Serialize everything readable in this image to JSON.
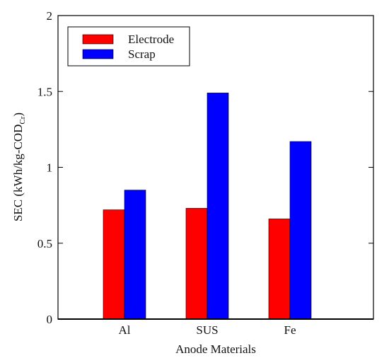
{
  "chart_data": {
    "type": "bar",
    "categories": [
      "Al",
      "SUS",
      "Fe"
    ],
    "series": [
      {
        "name": "Electrode",
        "values": [
          0.72,
          0.73,
          0.66
        ],
        "color": "#ff0000"
      },
      {
        "name": "Scrap",
        "values": [
          0.85,
          1.49,
          1.17
        ],
        "color": "#0000ff"
      }
    ],
    "xlabel": "Anode Materials",
    "ylabel": {
      "main": "SEC (kWh/kg-COD",
      "sub": "Cr",
      "tail": ")"
    },
    "ylim": [
      0,
      2
    ],
    "yticks": [
      0,
      0.5,
      1,
      1.5,
      2
    ],
    "grid": false,
    "legend": "top-left"
  }
}
